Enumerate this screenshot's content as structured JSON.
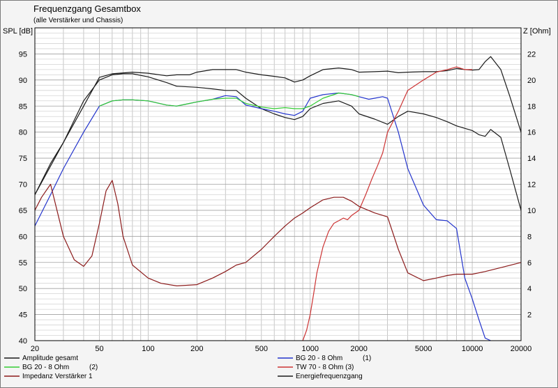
{
  "chart_data": {
    "type": "line",
    "title": "Frequenzgang Gesamtbox",
    "subtitle": "(alle Verstärker und Chassis)",
    "ylabel": "SPL [dB]",
    "y2label": "Z [Ohm]",
    "xscale": "log",
    "xlim": [
      20,
      20000
    ],
    "ylim": [
      40,
      100
    ],
    "y2lim": [
      0,
      24
    ],
    "grid": true,
    "xticks": [
      20,
      50,
      100,
      200,
      500,
      1000,
      2000,
      5000,
      10000,
      20000
    ],
    "xtick_labels": [
      "20",
      "50",
      "100",
      "200",
      "500",
      "1000",
      "2000",
      "5000",
      "10000",
      "20000"
    ],
    "yticks": [
      40,
      45,
      50,
      55,
      60,
      65,
      70,
      75,
      80,
      85,
      90,
      95
    ],
    "yticks_labels": [
      "40",
      "45",
      "50",
      "55",
      "60",
      "65",
      "70",
      "75",
      "80",
      "85",
      "90",
      "95"
    ],
    "y2ticks": [
      2,
      4,
      6,
      8,
      10,
      12,
      14,
      16,
      18,
      20,
      22
    ],
    "y2ticks_labels": [
      "2",
      "4",
      "6",
      "8",
      "10",
      "12",
      "14",
      "16",
      "18",
      "20",
      "22"
    ],
    "legend_placement": "bottom",
    "series": [
      {
        "name": "Amplitude gesamt",
        "axis": "left",
        "color": "#1a1a1a",
        "x": [
          20,
          25,
          30,
          40,
          50,
          60,
          80,
          100,
          130,
          150,
          180,
          200,
          250,
          300,
          350,
          400,
          500,
          600,
          700,
          800,
          900,
          1000,
          1200,
          1500,
          1800,
          2000,
          2500,
          3000,
          3500,
          4000,
          5000,
          6000,
          7000,
          8000,
          9000,
          10000,
          11000,
          12000,
          13000,
          15000,
          17000,
          20000
        ],
        "y": [
          68,
          74,
          78,
          85,
          90.5,
          91.2,
          91.5,
          91.3,
          90.8,
          91,
          91,
          91.5,
          92,
          92,
          92,
          91.5,
          91,
          90.7,
          90.4,
          89.6,
          90,
          90.8,
          92,
          92.3,
          92,
          91.5,
          91.6,
          91.7,
          91.4,
          91.5,
          91.6,
          91.6,
          91.8,
          92.2,
          92,
          91.9,
          92,
          93.5,
          94.5,
          92,
          87,
          80
        ]
      },
      {
        "name": "Energiefrequenzgang",
        "axis": "left",
        "color": "#1a1a1a",
        "x": [
          20,
          25,
          30,
          40,
          50,
          60,
          70,
          80,
          100,
          130,
          150,
          200,
          250,
          300,
          350,
          400,
          500,
          600,
          700,
          800,
          900,
          1000,
          1200,
          1500,
          1800,
          2000,
          2500,
          3000,
          3500,
          4000,
          5000,
          6000,
          7000,
          8000,
          10000,
          11000,
          12000,
          13000,
          15000,
          17000,
          20000
        ],
        "y": [
          68,
          73.5,
          78,
          86,
          90,
          91,
          91.2,
          91.2,
          90.6,
          89.5,
          88.8,
          88.6,
          88.3,
          88,
          88,
          86.5,
          84.5,
          83.5,
          82.8,
          82.4,
          83,
          84.5,
          85.5,
          86,
          85,
          83.5,
          82.5,
          81.5,
          83,
          84,
          83.5,
          82.8,
          82,
          81.2,
          80.3,
          79.5,
          79.2,
          80.5,
          79,
          73,
          65
        ]
      },
      {
        "name": "BG 20 - 8 Ohm",
        "legend_suffix": "(1)",
        "axis": "left",
        "color": "#2233cc",
        "x": [
          20,
          25,
          30,
          40,
          50,
          60,
          70,
          80,
          100,
          130,
          150,
          180,
          200,
          250,
          300,
          350,
          400,
          500,
          600,
          700,
          800,
          900,
          1000,
          1200,
          1500,
          1800,
          2000,
          2300,
          2500,
          2800,
          3000,
          3500,
          4000,
          5000,
          6000,
          7000,
          8000,
          9000,
          10000,
          11000,
          12000,
          13000
        ],
        "y": [
          62,
          68,
          73,
          80,
          85,
          86,
          86.2,
          86.2,
          86,
          85.2,
          85,
          85.5,
          85.8,
          86.3,
          87,
          86.8,
          85.2,
          84.5,
          84,
          83.5,
          83.2,
          84,
          86.5,
          87.2,
          87.5,
          87.2,
          86.8,
          86.3,
          86.5,
          86.8,
          86.5,
          80,
          73,
          66,
          63.2,
          63,
          61.5,
          52,
          48,
          44,
          40.5,
          40
        ]
      },
      {
        "name": "BG 20 - 8 Ohm",
        "legend_suffix": "(2)",
        "axis": "left",
        "color": "#33cc33",
        "x": [
          50,
          60,
          70,
          80,
          100,
          130,
          150,
          180,
          200,
          250,
          300,
          350,
          400,
          500,
          600,
          700,
          800,
          900,
          1000,
          1200,
          1500,
          1800,
          2000
        ],
        "y": [
          85,
          86,
          86.2,
          86.2,
          86,
          85.2,
          85,
          85.5,
          85.8,
          86.3,
          86.5,
          86.5,
          85.5,
          84.8,
          84.5,
          84.7,
          84.5,
          84.5,
          85,
          86.5,
          87.5,
          87.2,
          86.8
        ]
      },
      {
        "name": "TW 70 - 8 Ohm (3)",
        "axis": "left",
        "color": "#cc3333",
        "x": [
          900,
          950,
          1000,
          1050,
          1100,
          1200,
          1300,
          1400,
          1500,
          1600,
          1700,
          1800,
          2000,
          2200,
          2400,
          2600,
          2800,
          3000,
          3500,
          4000,
          5000,
          6000,
          7000,
          8000,
          9000,
          10000
        ],
        "y": [
          40,
          42,
          45,
          49,
          53,
          58,
          61,
          62.5,
          63,
          63.5,
          63.2,
          64,
          65,
          68,
          71,
          73.5,
          76,
          80,
          84,
          88,
          90,
          91.5,
          92,
          92.5,
          92,
          92
        ]
      },
      {
        "name": "Impedanz Verstärker 1",
        "axis": "right",
        "color": "#8b1a1a",
        "x": [
          20,
          22,
          25,
          30,
          35,
          40,
          45,
          50,
          55,
          60,
          65,
          70,
          80,
          100,
          120,
          150,
          200,
          250,
          300,
          350,
          400,
          500,
          600,
          700,
          800,
          900,
          1000,
          1200,
          1400,
          1600,
          1800,
          2000,
          2500,
          3000,
          3500,
          4000,
          5000,
          6000,
          7000,
          8000,
          10000,
          12000,
          15000,
          20000
        ],
        "y": [
          10,
          11,
          12,
          8,
          6.2,
          5.7,
          6.5,
          9,
          11.5,
          12.3,
          10.5,
          8,
          5.8,
          4.8,
          4.4,
          4.2,
          4.3,
          4.8,
          5.3,
          5.8,
          6,
          7,
          8,
          8.8,
          9.4,
          9.8,
          10.2,
          10.8,
          11,
          11,
          10.7,
          10.3,
          9.8,
          9.5,
          7,
          5.2,
          4.6,
          4.8,
          5,
          5.1,
          5.1,
          5.3,
          5.6,
          6
        ]
      }
    ],
    "legend": [
      {
        "label": "Amplitude gesamt",
        "suffix": "",
        "color": "#1a1a1a"
      },
      {
        "label": "BG 20 - 8 Ohm",
        "suffix": "(1)",
        "color": "#2233cc"
      },
      {
        "label": "BG 20 - 8 Ohm",
        "suffix": "(2)",
        "color": "#33cc33"
      },
      {
        "label": "TW 70 - 8 Ohm (3)",
        "suffix": "",
        "color": "#cc3333"
      },
      {
        "label": "Impedanz Verstärker 1",
        "suffix": "",
        "color": "#8b1a1a"
      },
      {
        "label": "Energiefrequenzgang",
        "suffix": "",
        "color": "#1a1a1a"
      }
    ]
  }
}
